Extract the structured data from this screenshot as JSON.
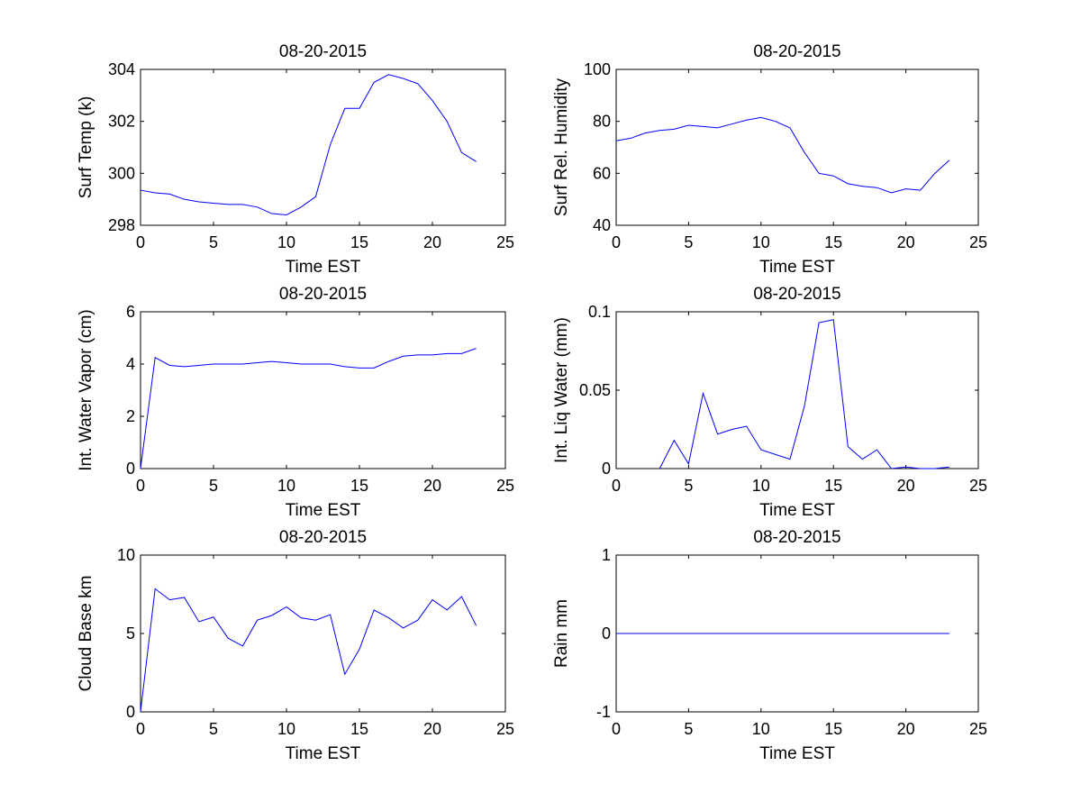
{
  "figure": {
    "background": "#ffffff",
    "line_color": "#0000ff"
  },
  "chart_data": [
    {
      "type": "line",
      "title": "08-20-2015",
      "xlabel": "Time EST",
      "ylabel": "Surf Temp (k)",
      "xlim": [
        0,
        25
      ],
      "ylim": [
        298,
        304
      ],
      "xticks": [
        0,
        5,
        10,
        15,
        20,
        25
      ],
      "yticks": [
        298,
        300,
        302,
        304
      ],
      "grid": false,
      "series": [
        {
          "x": [
            0,
            1,
            2,
            3,
            4,
            5,
            6,
            7,
            8,
            9,
            10,
            11,
            12,
            13,
            14,
            15,
            16,
            17,
            18,
            19,
            20,
            21,
            22,
            23
          ],
          "values": [
            299.35,
            299.25,
            299.2,
            299.0,
            298.9,
            298.85,
            298.8,
            298.8,
            298.7,
            298.45,
            298.4,
            298.7,
            299.1,
            301.1,
            302.5,
            302.5,
            303.5,
            303.8,
            303.65,
            303.45,
            302.8,
            302.0,
            300.8,
            300.45
          ]
        }
      ]
    },
    {
      "type": "line",
      "title": "08-20-2015",
      "xlabel": "Time EST",
      "ylabel": "Surf Rel. Humidity",
      "xlim": [
        0,
        25
      ],
      "ylim": [
        40,
        100
      ],
      "xticks": [
        0,
        5,
        10,
        15,
        20,
        25
      ],
      "yticks": [
        40,
        60,
        80,
        100
      ],
      "grid": false,
      "series": [
        {
          "x": [
            0,
            1,
            2,
            3,
            4,
            5,
            6,
            7,
            8,
            9,
            10,
            11,
            12,
            13,
            14,
            15,
            16,
            17,
            18,
            19,
            20,
            21,
            22,
            23
          ],
          "values": [
            72.5,
            73.5,
            75.5,
            76.5,
            77,
            78.5,
            78,
            77.5,
            79,
            80.5,
            81.5,
            80,
            77.5,
            68,
            60,
            59,
            56,
            55,
            54.5,
            52.5,
            54,
            53.5,
            60,
            65
          ]
        }
      ]
    },
    {
      "type": "line",
      "title": "08-20-2015",
      "xlabel": "Time EST",
      "ylabel": "Int. Water Vapor (cm)",
      "xlim": [
        0,
        25
      ],
      "ylim": [
        0,
        6
      ],
      "xticks": [
        0,
        5,
        10,
        15,
        20,
        25
      ],
      "yticks": [
        0,
        2,
        4,
        6
      ],
      "grid": false,
      "series": [
        {
          "x": [
            0,
            1,
            2,
            3,
            4,
            5,
            6,
            7,
            8,
            9,
            10,
            11,
            12,
            13,
            14,
            15,
            16,
            17,
            18,
            19,
            20,
            21,
            22,
            23
          ],
          "values": [
            0,
            4.25,
            3.95,
            3.9,
            3.95,
            4.0,
            4.0,
            4.0,
            4.05,
            4.1,
            4.05,
            4.0,
            4.0,
            4.0,
            3.9,
            3.85,
            3.85,
            4.1,
            4.3,
            4.35,
            4.35,
            4.4,
            4.4,
            4.6
          ]
        }
      ]
    },
    {
      "type": "line",
      "title": "08-20-2015",
      "xlabel": "Time EST",
      "ylabel": "Int. Liq Water (mm)",
      "xlim": [
        0,
        25
      ],
      "ylim": [
        0,
        0.1
      ],
      "xticks": [
        0,
        5,
        10,
        15,
        20,
        25
      ],
      "yticks": [
        0,
        0.05,
        0.1
      ],
      "ytick_labels": [
        "0",
        "0.05",
        "0.1"
      ],
      "grid": false,
      "series": [
        {
          "x": [
            3,
            4,
            5,
            6,
            7,
            8,
            9,
            10,
            11,
            12,
            13,
            14,
            15,
            16,
            17,
            18,
            19,
            20,
            21,
            22,
            23
          ],
          "values": [
            0,
            0.018,
            0.003,
            0.048,
            0.022,
            0.025,
            0.027,
            0.012,
            0.009,
            0.006,
            0.04,
            0.093,
            0.095,
            0.014,
            0.006,
            0.012,
            0,
            0.001,
            0,
            0,
            0.001
          ]
        }
      ]
    },
    {
      "type": "line",
      "title": "08-20-2015",
      "xlabel": "Time EST",
      "ylabel": "Cloud Base km",
      "xlim": [
        0,
        25
      ],
      "ylim": [
        0,
        10
      ],
      "xticks": [
        0,
        5,
        10,
        15,
        20,
        25
      ],
      "yticks": [
        0,
        5,
        10
      ],
      "grid": false,
      "series": [
        {
          "x": [
            0,
            1,
            2,
            3,
            4,
            5,
            6,
            7,
            8,
            9,
            10,
            11,
            12,
            13,
            14,
            15,
            16,
            17,
            18,
            19,
            20,
            21,
            22,
            23
          ],
          "values": [
            0,
            7.85,
            7.15,
            7.3,
            5.75,
            6.05,
            4.7,
            4.2,
            5.85,
            6.15,
            6.7,
            6.0,
            5.85,
            6.2,
            2.4,
            4.0,
            6.5,
            6.0,
            5.35,
            5.85,
            7.15,
            6.5,
            7.35,
            5.5
          ]
        }
      ]
    },
    {
      "type": "line",
      "title": "08-20-2015",
      "xlabel": "Time EST",
      "ylabel": "Rain mm",
      "xlim": [
        0,
        25
      ],
      "ylim": [
        -1,
        1
      ],
      "xticks": [
        0,
        5,
        10,
        15,
        20,
        25
      ],
      "yticks": [
        -1,
        0,
        1
      ],
      "grid": false,
      "series": [
        {
          "x": [
            0,
            1,
            2,
            3,
            4,
            5,
            6,
            7,
            8,
            9,
            10,
            11,
            12,
            13,
            14,
            15,
            16,
            17,
            18,
            19,
            20,
            21,
            22,
            23
          ],
          "values": [
            0,
            0,
            0,
            0,
            0,
            0,
            0,
            0,
            0,
            0,
            0,
            0,
            0,
            0,
            0,
            0,
            0,
            0,
            0,
            0,
            0,
            0,
            0,
            0
          ]
        }
      ]
    }
  ]
}
